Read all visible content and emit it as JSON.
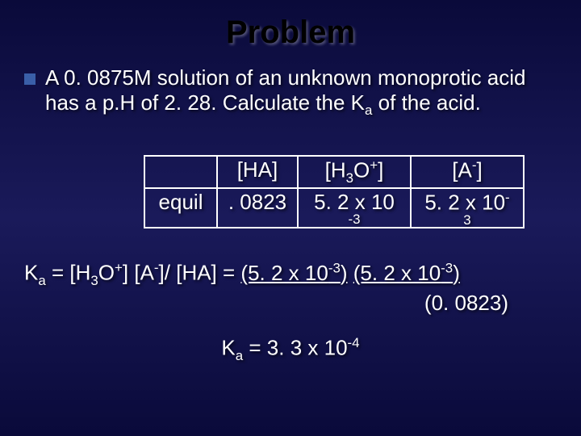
{
  "title": "Problem",
  "problem_text": "A 0. 0875M solution of an unknown monoprotic acid has a p.H of 2. 28.  Calculate the K",
  "problem_text2": " of the acid.",
  "table": {
    "header": {
      "c1": "",
      "c2": "[HA]",
      "c3_pre": "[H",
      "c3_sub": "3",
      "c3_post": "O",
      "c3_sup": "+",
      "c3_end": "]",
      "c4_pre": "[A",
      "c4_sup": "-",
      "c4_end": "]"
    },
    "row": {
      "c1": "equil",
      "c2": ". 0823",
      "c3_pre": "5. 2 x 10",
      "c3_subline": "-3",
      "c4_pre": "5. 2 x 10",
      "c4_sup": "-",
      "c4_subline": "3"
    }
  },
  "eq1": {
    "pre": "K",
    "sub_a": "a",
    "mid1": " = [H",
    "sub3": "3",
    "mid2": "O",
    "sup_plus": "+",
    "mid3": "] [A",
    "sup_minus": "-",
    "mid4": "]/ [HA] = ",
    "u1": "(5. 2 x 10",
    "u1_sup": "-3",
    "u1_end": ")",
    "gap": " ",
    "u2": "(5. 2 x 10",
    "u2_sup": "-3",
    "u2_end": ")"
  },
  "eq2": "(0. 0823)",
  "eq3": {
    "pre": "K",
    "sub_a": "a",
    "mid": " = 3. 3 x 10",
    "sup": "-4"
  },
  "colors": {
    "bullet": "#3a5fa8",
    "title": "#000000",
    "text": "#ffffff"
  }
}
